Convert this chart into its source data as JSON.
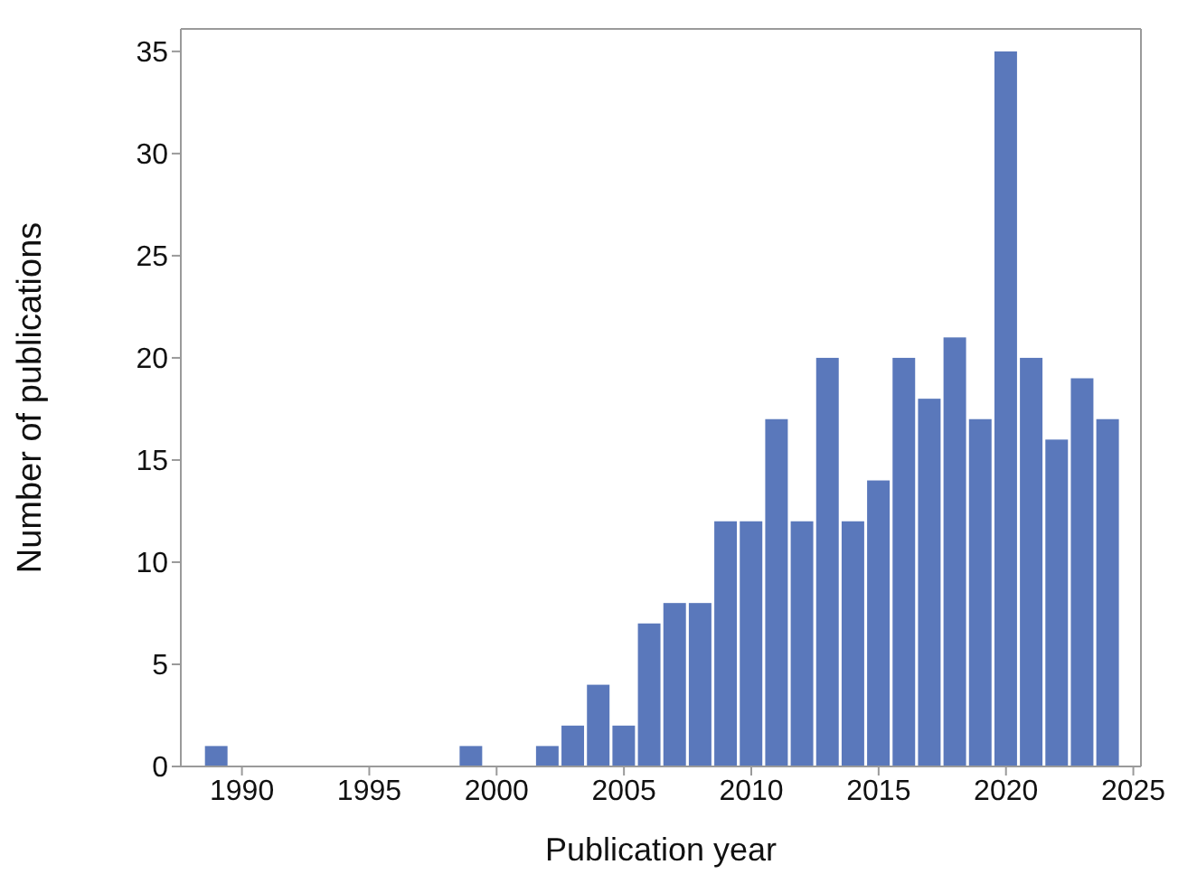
{
  "chart_data": {
    "type": "histogram",
    "xlabel": "Publication year",
    "ylabel": "Number of publications",
    "bins": [
      1988.5,
      1989.5,
      1990.5,
      1991.5,
      1992.5,
      1993.5,
      1994.5,
      1995.5,
      1996.5,
      1997.5,
      1998.5,
      1999.5,
      2000.5,
      2001.5,
      2002.5,
      2003.5,
      2004.5,
      2005.5,
      2006.5,
      2007.5,
      2008.5,
      2009.5,
      2010.5,
      2011.5,
      2012.5,
      2013.5,
      2014.5,
      2015.5,
      2016.5,
      2017.5,
      2018.5,
      2019.5,
      2020.5,
      2021.5,
      2022.5,
      2023.5,
      2024.5
    ],
    "values": [
      1,
      0,
      0,
      0,
      0,
      0,
      0,
      0,
      0,
      0,
      1,
      0,
      0,
      1,
      2,
      4,
      2,
      7,
      8,
      8,
      12,
      12,
      17,
      12,
      20,
      12,
      14,
      20,
      18,
      21,
      17,
      35,
      20,
      16,
      19,
      17
    ],
    "color": "#5a78bb",
    "xlim": [
      1987.6,
      2025.3
    ],
    "ylim": [
      0,
      36.1
    ],
    "xticks": [
      1990,
      1995,
      2000,
      2005,
      2010,
      2015,
      2020,
      2025
    ],
    "yticks": [
      0,
      5,
      10,
      15,
      20,
      25,
      30,
      35
    ],
    "grid": false,
    "legend": false
  }
}
